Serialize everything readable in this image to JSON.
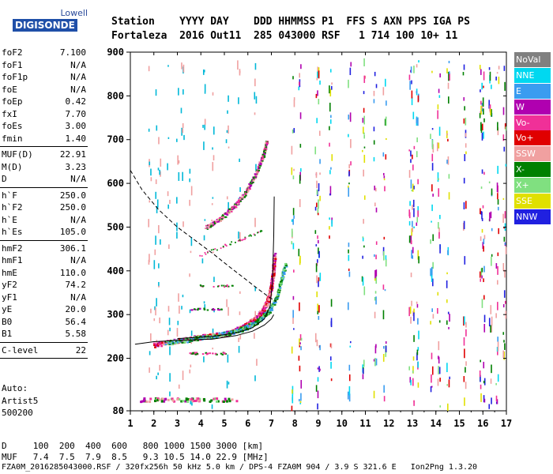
{
  "logo": {
    "line1": "Lowell",
    "line2": "DIGISONDE"
  },
  "header": {
    "line1": "Station    YYYY DAY    DDD HHMMSS P1  FFS S AXN PPS IGA PS",
    "line2": "Fortaleza  2016 Out11  285 043000 RSF   1 714 100 10+ 11"
  },
  "params": {
    "group1": [
      {
        "k": "foF2",
        "v": "7.100"
      },
      {
        "k": "foF1",
        "v": "N/A"
      },
      {
        "k": "foF1p",
        "v": "N/A"
      },
      {
        "k": "foE",
        "v": "N/A"
      },
      {
        "k": "foEp",
        "v": "0.42"
      },
      {
        "k": "fxI",
        "v": "7.70"
      },
      {
        "k": "foEs",
        "v": "3.00"
      },
      {
        "k": "fmin",
        "v": "1.40"
      }
    ],
    "group2": [
      {
        "k": "MUF(D)",
        "v": "22.91"
      },
      {
        "k": "M(D)",
        "v": "3.23"
      },
      {
        "k": "D",
        "v": "N/A"
      }
    ],
    "group3": [
      {
        "k": "h`F",
        "v": "250.0"
      },
      {
        "k": "h`F2",
        "v": "250.0"
      },
      {
        "k": "h`E",
        "v": "N/A"
      },
      {
        "k": "h`Es",
        "v": "105.0"
      }
    ],
    "group4": [
      {
        "k": "hmF2",
        "v": "306.1"
      },
      {
        "k": "hmF1",
        "v": "N/A"
      },
      {
        "k": "hmE",
        "v": "110.0"
      },
      {
        "k": "yF2",
        "v": "74.2"
      },
      {
        "k": "yF1",
        "v": "N/A"
      },
      {
        "k": "yE",
        "v": "20.0"
      },
      {
        "k": "B0",
        "v": "56.4"
      },
      {
        "k": "B1",
        "v": "5.58"
      }
    ],
    "group5": [
      {
        "k": "C-level",
        "v": "22"
      }
    ]
  },
  "auto": {
    "l1": "Auto:",
    "l2": "Artist5",
    "l3": "500200"
  },
  "legend": [
    {
      "label": "NoVal",
      "color": "#808080"
    },
    {
      "label": "NNE",
      "color": "#00d8f0"
    },
    {
      "label": "E",
      "color": "#3a9cf0"
    },
    {
      "label": "W",
      "color": "#b000b0"
    },
    {
      "label": "Vo-",
      "color": "#f03098"
    },
    {
      "label": "Vo+",
      "color": "#e00000"
    },
    {
      "label": "SSW",
      "color": "#f0a0a0"
    },
    {
      "label": "X-",
      "color": "#008000"
    },
    {
      "label": "X+",
      "color": "#80e080"
    },
    {
      "label": "SSE",
      "color": "#e0e000"
    },
    {
      "label": "NNW",
      "color": "#2020e0"
    }
  ],
  "bottom": {
    "dline": "D     100  200  400  600   800 1000 1500 3000 [km]",
    "mufline": "MUF   7.4  7.5  7.9  8.5   9.3 10.5 14.0 22.9 [MHz]",
    "fileline": "FZA0M_2016285043000.RSF / 320fx256h 50 kHz 5.0 km / DPS-4 FZA0M 904 / 3.9 S 321.6 E   Ion2Png 1.3.20"
  },
  "chart_data": {
    "type": "scatter",
    "xlim": [
      1,
      17
    ],
    "ylim": [
      80,
      900
    ],
    "xticks": [
      "1",
      "2",
      "3",
      "4",
      "5",
      "6",
      "7",
      "8",
      "9",
      "10",
      "11",
      "12",
      "13",
      "14",
      "15",
      "16",
      "17"
    ],
    "yticks": [
      "80",
      "200",
      "300",
      "400",
      "500",
      "600",
      "700",
      "800",
      "900"
    ],
    "grid": false,
    "legend_position": "right",
    "traces": {
      "F_ordinary": [
        [
          2.0,
          232
        ],
        [
          3.0,
          242
        ],
        [
          4.0,
          250
        ],
        [
          5.0,
          258
        ],
        [
          5.5,
          266
        ],
        [
          6.0,
          280
        ],
        [
          6.3,
          292
        ],
        [
          6.6,
          310
        ],
        [
          6.8,
          330
        ],
        [
          6.95,
          360
        ],
        [
          7.05,
          400
        ],
        [
          7.1,
          440
        ]
      ],
      "F_extraordinary": [
        [
          2.5,
          236
        ],
        [
          3.5,
          244
        ],
        [
          4.5,
          252
        ],
        [
          5.5,
          262
        ],
        [
          6.0,
          274
        ],
        [
          6.5,
          290
        ],
        [
          6.9,
          310
        ],
        [
          7.2,
          340
        ],
        [
          7.4,
          380
        ],
        [
          7.6,
          420
        ]
      ],
      "F_second_hop": [
        [
          4.2,
          500
        ],
        [
          4.8,
          520
        ],
        [
          5.4,
          548
        ],
        [
          5.9,
          580
        ],
        [
          6.3,
          620
        ],
        [
          6.6,
          660
        ],
        [
          6.8,
          700
        ]
      ],
      "model_ordinary_line": [
        [
          3.0,
          245
        ],
        [
          4.5,
          250
        ],
        [
          5.5,
          258
        ],
        [
          6.2,
          270
        ],
        [
          6.7,
          290
        ],
        [
          6.95,
          320
        ],
        [
          7.05,
          380
        ],
        [
          7.1,
          480
        ],
        [
          7.12,
          570
        ]
      ],
      "model_lower_line": [
        [
          1.2,
          232
        ],
        [
          2.0,
          238
        ],
        [
          3.0,
          241
        ],
        [
          4.5,
          244
        ],
        [
          5.5,
          252
        ],
        [
          6.2,
          262
        ],
        [
          6.7,
          276
        ],
        [
          7.0,
          290
        ],
        [
          7.1,
          300
        ]
      ],
      "dashed_line": [
        [
          1.0,
          630
        ],
        [
          1.5,
          585
        ],
        [
          2.2,
          540
        ],
        [
          3.0,
          500
        ],
        [
          3.8,
          468
        ],
        [
          4.5,
          440
        ],
        [
          5.2,
          410
        ],
        [
          5.8,
          385
        ],
        [
          6.4,
          360
        ],
        [
          6.9,
          340
        ],
        [
          7.2,
          330
        ]
      ],
      "Es_band": [
        [
          1.4,
          105
        ],
        [
          2.0,
          105
        ],
        [
          3.0,
          105
        ],
        [
          4.0,
          105
        ],
        [
          5.0,
          105
        ],
        [
          5.4,
          105
        ]
      ],
      "E_patch": [
        [
          3.5,
          212
        ],
        [
          4.0,
          212
        ],
        [
          4.5,
          212
        ],
        [
          5.0,
          212
        ]
      ]
    }
  }
}
